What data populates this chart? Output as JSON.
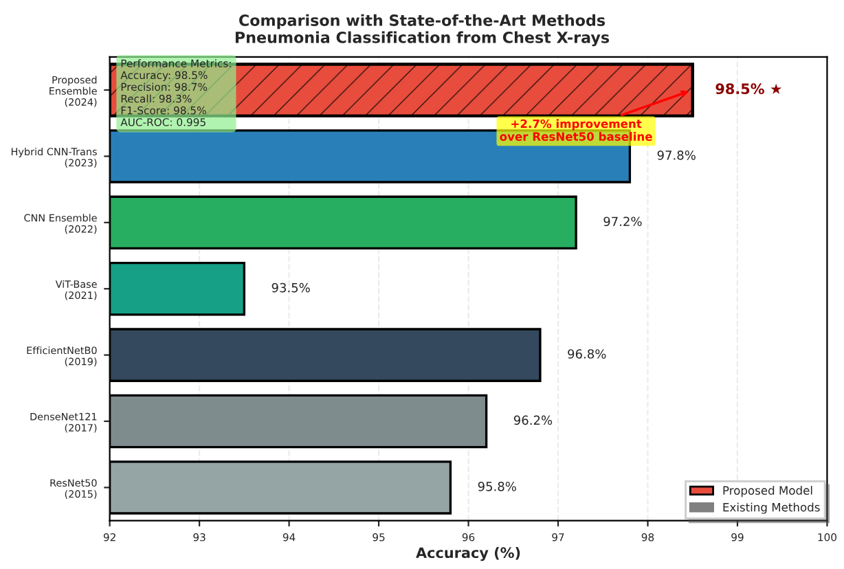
{
  "chart_data": {
    "type": "bar",
    "orientation": "horizontal",
    "title": "Comparison with State-of-the-Art Methods",
    "subtitle": "Pneumonia Classification from Chest X-rays",
    "xlabel": "Accuracy (%)",
    "categories": [
      "Proposed\nEnsemble\n(2024)",
      "Hybrid CNN-Trans\n(2023)",
      "CNN Ensemble\n(2022)",
      "ViT-Base\n(2021)",
      "EfficientNetB0\n(2019)",
      "DenseNet121\n(2017)",
      "ResNet50\n(2015)"
    ],
    "series": [
      {
        "name": "Proposed Model",
        "color": "#e74c3c",
        "values": [
          98.5,
          null,
          null,
          null,
          null,
          null,
          null
        ],
        "value_labels": [
          "98.5% ★",
          null,
          null,
          null,
          null,
          null,
          null
        ]
      },
      {
        "name": "Existing Methods",
        "color": "#808080",
        "colors": [
          null,
          "#2980b9",
          "#27ae60",
          "#16a085",
          "#34495e",
          "#7f8c8d",
          "#95a5a6"
        ],
        "values": [
          null,
          97.8,
          97.2,
          93.5,
          96.8,
          96.2,
          95.8
        ],
        "value_labels": [
          null,
          "97.8%",
          "97.2%",
          "93.5%",
          "96.8%",
          "96.2%",
          "95.8%"
        ]
      }
    ],
    "xlim": [
      92,
      100
    ],
    "xticks": [
      92,
      93,
      94,
      95,
      96,
      97,
      98,
      99,
      100
    ],
    "grid": "x",
    "legend": "bottom right",
    "annotations": [
      "Performance Metrics:\nAccuracy: 98.5%\nPrecision: 98.7%\nRecall: 98.3%\nF1-Score: 98.5%\nAUC-ROC: 0.995",
      {
        "text": "+2.7% improvement\nover ResNet50 baseline",
        "x": 98.5,
        "y": "Proposed\nEnsemble\n(2024)"
      }
    ]
  }
}
